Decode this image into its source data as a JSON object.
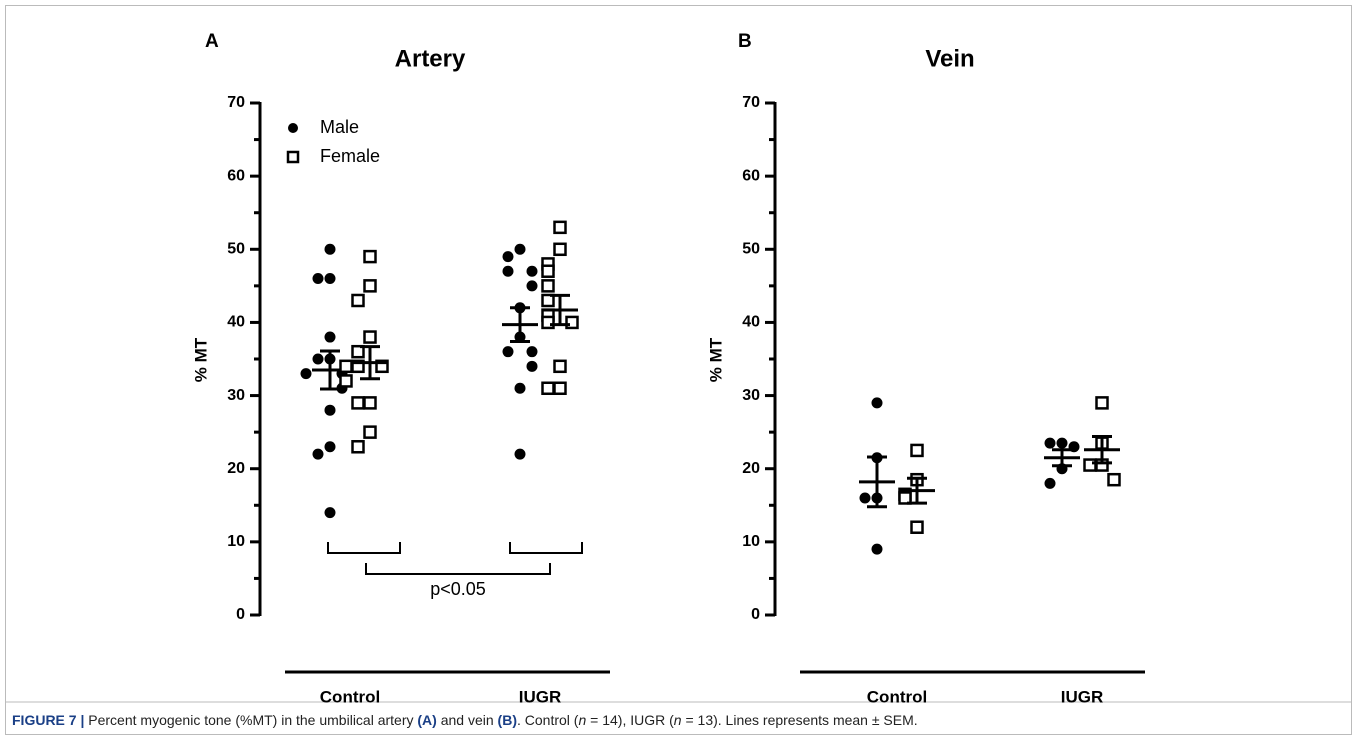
{
  "chart_data": [
    {
      "type": "scatter",
      "panel": "A",
      "title": "Artery",
      "ylabel": "% MT",
      "categories": [
        "Control",
        "IUGR"
      ],
      "ylim": [
        0,
        70
      ],
      "yticks": [
        0,
        10,
        20,
        30,
        40,
        50,
        60,
        70
      ],
      "minor_yticks": [
        5,
        15,
        25,
        35,
        45,
        55,
        65
      ],
      "legend": "upper left",
      "annotation": "p<0.05",
      "series": [
        {
          "name": "Male",
          "marker": "circle",
          "color": "#000000",
          "values": [
            [
              50,
              46,
              46,
              38,
              35,
              35,
              33,
              33,
              31,
              28,
              23,
              22,
              14
            ],
            [
              50,
              49,
              47,
              47,
              45,
              42,
              38,
              36,
              36,
              34,
              31,
              22
            ]
          ],
          "mean": [
            33.5,
            39.7
          ],
          "sem": [
            2.6,
            2.3
          ]
        },
        {
          "name": "Female",
          "marker": "square",
          "color": "#000000",
          "values": [
            [
              49,
              45,
              43,
              38,
              36,
              34,
              34,
              34,
              32,
              29,
              29,
              25,
              23
            ],
            [
              53,
              50,
              48,
              47,
              45,
              43,
              41,
              40,
              40,
              34,
              31,
              31
            ]
          ],
          "mean": [
            34.5,
            41.7
          ],
          "sem": [
            2.2,
            2.0
          ]
        }
      ]
    },
    {
      "type": "scatter",
      "panel": "B",
      "title": "Vein",
      "ylabel": "% MT",
      "categories": [
        "Control",
        "IUGR"
      ],
      "ylim": [
        0,
        70
      ],
      "yticks": [
        0,
        10,
        20,
        30,
        40,
        50,
        60,
        70
      ],
      "minor_yticks": [
        5,
        15,
        25,
        35,
        45,
        55,
        65
      ],
      "series": [
        {
          "marker": "circle",
          "color": "#000000",
          "values": [
            [
              29,
              21.5,
              16,
              16,
              9
            ],
            [
              23.5,
              23.5,
              23,
              20,
              18
            ]
          ],
          "mean": [
            18.2,
            21.5
          ],
          "sem": [
            3.4,
            1.1
          ]
        },
        {
          "marker": "square",
          "color": "#000000",
          "values": [
            [
              22.5,
              18.5,
              16.5,
              16,
              12
            ],
            [
              29,
              23.5,
              20.5,
              20.5,
              18.5
            ]
          ],
          "mean": [
            17.0,
            22.6
          ],
          "sem": [
            1.7,
            1.8
          ]
        }
      ]
    }
  ],
  "caption": [
    "FIGURE 7 |",
    " Percent myogenic tone (%MT) in the umbilical artery ",
    "(A)",
    " and vein ",
    "(B)",
    ". Control (",
    "n",
    " = 14), IUGR (",
    "n",
    " = 13). Lines represents mean ± SEM."
  ]
}
